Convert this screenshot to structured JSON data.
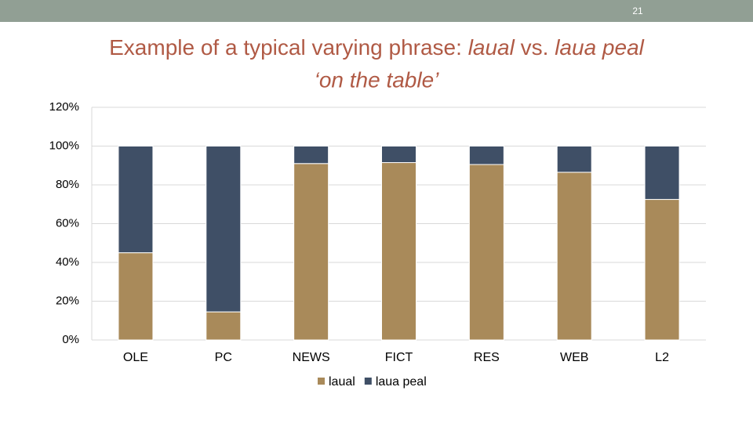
{
  "slide": {
    "number": "21",
    "title_segments": [
      "Example of a typical varying phrase: ",
      "laual",
      " vs. ",
      "laua peal",
      "‘on the table’"
    ]
  },
  "chart_data": {
    "type": "stacked_bar",
    "categories": [
      "OLE",
      "PC",
      "NEWS",
      "FICT",
      "RES",
      "WEB",
      "L2"
    ],
    "series": [
      {
        "name": "laual",
        "color": "#a98a5a",
        "values": [
          45,
          14.5,
          91,
          91.5,
          90.5,
          86.5,
          72.5
        ]
      },
      {
        "name": "laua peal",
        "color": "#3f4f66",
        "values": [
          55,
          85.5,
          9,
          8.5,
          9.5,
          13.5,
          27.5
        ]
      }
    ],
    "ylim": [
      0,
      120
    ],
    "yticks": [
      {
        "value": 0,
        "label": "0%"
      },
      {
        "value": 20,
        "label": "20%"
      },
      {
        "value": 40,
        "label": "40%"
      },
      {
        "value": 60,
        "label": "60%"
      },
      {
        "value": 80,
        "label": "80%"
      },
      {
        "value": 100,
        "label": "100%"
      },
      {
        "value": 120,
        "label": "120%"
      }
    ],
    "grid": true,
    "legend": "bottom"
  }
}
